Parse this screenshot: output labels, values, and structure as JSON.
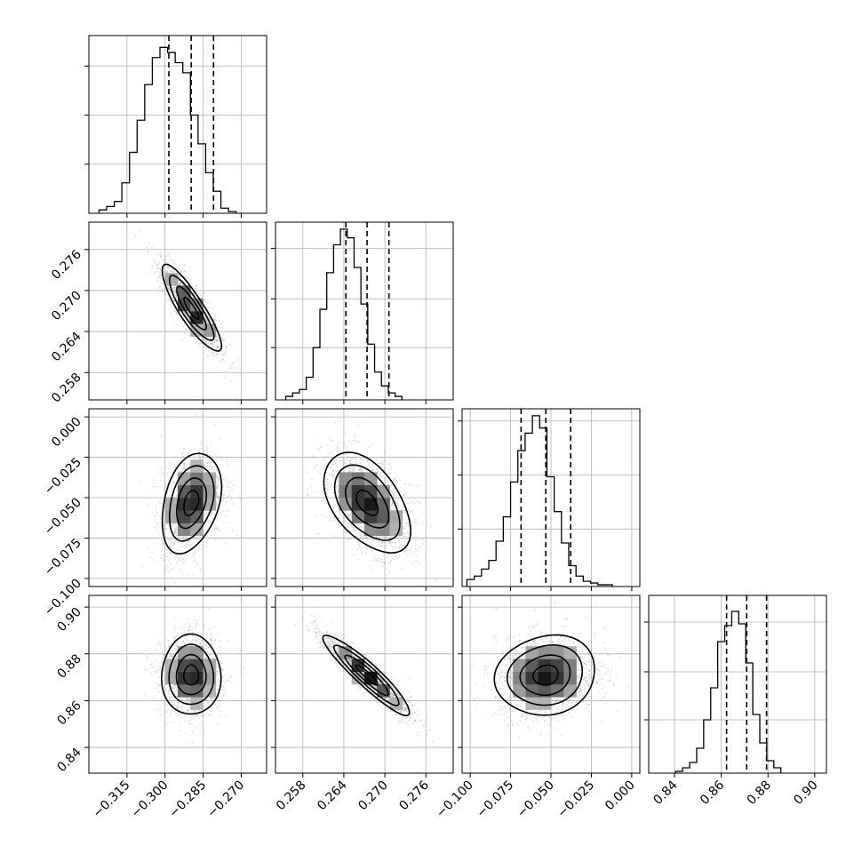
{
  "figure": {
    "type": "corner-plot",
    "colors": {
      "line": "#000000",
      "grid": "#b0b0b0",
      "scatter": "#9a9a9a",
      "background": "#ffffff"
    }
  },
  "chart_data": {
    "type": "corner",
    "parameters": [
      {
        "range": [
          -0.33,
          -0.26
        ],
        "ticks": [
          -0.315,
          -0.3,
          -0.285,
          -0.27
        ],
        "tick_labels": [
          "−0.315",
          "−0.300",
          "−0.285",
          "−0.270"
        ],
        "quantiles": [
          -0.2985,
          -0.2897,
          -0.2809
        ],
        "hist_edges_start": -0.326,
        "hist_edge_step": 0.003,
        "hist_counts": [
          0.02,
          0.04,
          0.07,
          0.18,
          0.36,
          0.55,
          0.76,
          0.92,
          0.98,
          0.95,
          0.89,
          0.83,
          0.58,
          0.41,
          0.24,
          0.13,
          0.03,
          0.01
        ],
        "hist_ymax": 1.05,
        "hist_yticks": [
          0.29,
          0.58,
          0.87
        ]
      },
      {
        "range": [
          0.254,
          0.28
        ],
        "ticks": [
          0.258,
          0.264,
          0.27,
          0.276
        ],
        "tick_labels": [
          "0.258",
          "0.264",
          "0.270",
          "0.276"
        ],
        "quantiles": [
          0.2643,
          0.2674,
          0.2706
        ],
        "hist_edges_start": 0.2555,
        "hist_edge_step": 0.001,
        "hist_counts": [
          0.02,
          0.04,
          0.06,
          0.13,
          0.3,
          0.52,
          0.73,
          0.89,
          0.98,
          0.93,
          0.76,
          0.55,
          0.32,
          0.16,
          0.08,
          0.04,
          0.02
        ],
        "hist_ymax": 1.02,
        "hist_yticks": [
          0.3,
          0.58,
          0.87
        ]
      },
      {
        "range": [
          -0.105,
          0.005
        ],
        "ticks": [
          -0.1,
          -0.075,
          -0.05,
          -0.025,
          0.0
        ],
        "tick_labels": [
          "−0.100",
          "−0.075",
          "−0.050",
          "−0.025",
          "0.000"
        ],
        "quantiles": [
          -0.0685,
          -0.0532,
          -0.0378
        ],
        "hist_edges_start": -0.102,
        "hist_edge_step": 0.0045,
        "hist_counts": [
          0.04,
          0.06,
          0.1,
          0.15,
          0.26,
          0.4,
          0.6,
          0.78,
          0.88,
          0.98,
          0.91,
          0.63,
          0.43,
          0.25,
          0.12,
          0.06,
          0.03,
          0.02,
          0.01,
          0.01
        ],
        "hist_ymax": 1.02,
        "hist_yticks": [
          0.33,
          0.64,
          0.95
        ]
      },
      {
        "range": [
          0.829,
          0.905
        ],
        "ticks": [
          0.84,
          0.86,
          0.88,
          0.9
        ],
        "tick_labels": [
          "0.84",
          "0.86",
          "0.88",
          "0.90"
        ],
        "quantiles": [
          0.8623,
          0.8709,
          0.8794
        ],
        "hist_edges_start": 0.8405,
        "hist_edge_step": 0.003,
        "hist_counts": [
          0.01,
          0.03,
          0.06,
          0.14,
          0.3,
          0.48,
          0.74,
          0.83,
          0.91,
          0.84,
          0.62,
          0.33,
          0.17,
          0.07,
          0.03
        ],
        "hist_ymax": 1.0,
        "hist_yticks": [
          0.3,
          0.57,
          0.85
        ]
      }
    ],
    "covariances": [
      {
        "pair": [
          1,
          0
        ],
        "cov": [
          [
            3.4e-05,
            -1.6e-05
          ],
          [
            -1.6e-05,
            1e-05
          ]
        ],
        "shape_contours": "ellipse-tilted-down"
      },
      {
        "pair": [
          2,
          0
        ],
        "cov": [
          [
            3.4e-05,
            3e-05
          ],
          [
            3e-05,
            0.00024
          ]
        ],
        "shape_contours": "ellipse-tilted-up"
      },
      {
        "pair": [
          2,
          1
        ],
        "cov": [
          [
            1e-05,
            -2.4e-05
          ],
          [
            -2.4e-05,
            0.00024
          ]
        ],
        "shape_contours": "ellipse-tilted-down"
      },
      {
        "pair": [
          3,
          0
        ],
        "cov": [
          [
            3.4e-05,
            0.0
          ],
          [
            0.0,
            7.3e-05
          ]
        ],
        "shape_contours": "near-circular"
      },
      {
        "pair": [
          3,
          1
        ],
        "cov": [
          [
            1e-05,
            -2.5e-05
          ],
          [
            -2.5e-05,
            7.3e-05
          ]
        ],
        "shape_contours": "strong-negative"
      },
      {
        "pair": [
          3,
          2
        ],
        "cov": [
          [
            0.00024,
            1.5e-05
          ],
          [
            1.5e-05,
            7.3e-05
          ]
        ],
        "shape_contours": "ellipse-wide"
      }
    ],
    "contour_levels_sigma": [
      0.5,
      1.0,
      1.5,
      2.0
    ],
    "grid": true,
    "quantile_line_style": "dashed"
  }
}
